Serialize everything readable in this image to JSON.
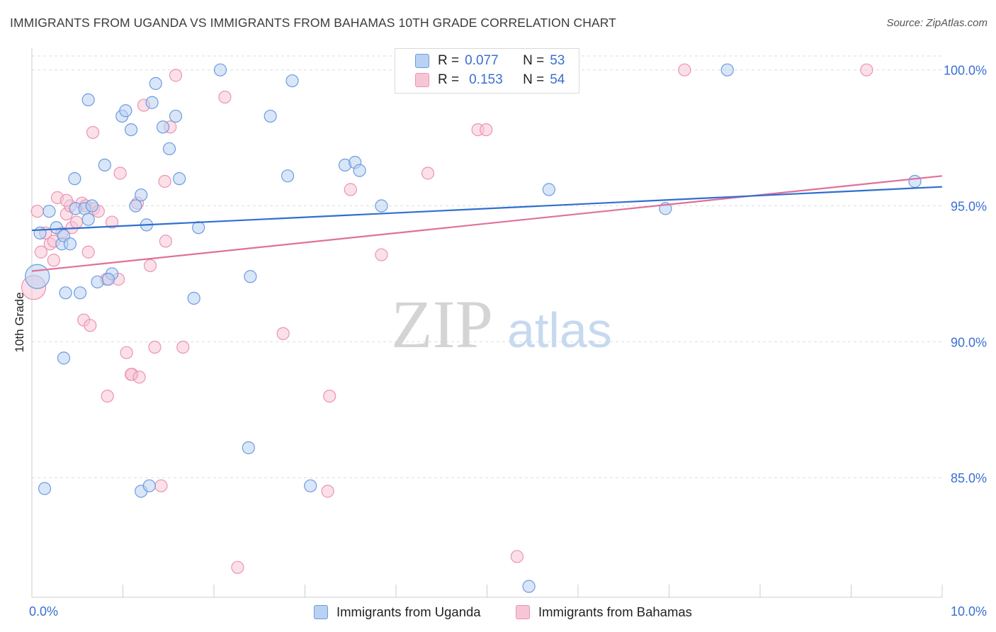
{
  "header": {
    "title": "IMMIGRANTS FROM UGANDA VS IMMIGRANTS FROM BAHAMAS 10TH GRADE CORRELATION CHART",
    "source": "Source: ZipAtlas.com"
  },
  "watermark": {
    "zip": "ZIP",
    "atlas": "atlas"
  },
  "legend": {
    "rows": [
      {
        "r_label": "R =",
        "r_value": "0.077",
        "n_label": "N =",
        "n_value": "53"
      },
      {
        "r_label": "R =",
        "r_value": "0.153",
        "n_label": "N =",
        "n_value": "54"
      }
    ]
  },
  "bottom_legend": {
    "uganda_label": "Immigrants from Uganda",
    "bahamas_label": "Immigrants from Bahamas"
  },
  "colors": {
    "uganda_fill": "#b9d1f2",
    "uganda_stroke": "#6c9be0",
    "uganda_line": "#2f6fd0",
    "bahamas_fill": "#f7c6d6",
    "bahamas_stroke": "#ec93b2",
    "bahamas_line": "#e0709a",
    "axis_text": "#3a6fd0",
    "grid": "#dddddd"
  },
  "chart_data": {
    "type": "scatter",
    "title": "IMMIGRANTS FROM UGANDA VS IMMIGRANTS FROM BAHAMAS 10TH GRADE CORRELATION CHART",
    "xlabel": "",
    "ylabel": "10th Grade",
    "xlim": [
      0,
      10
    ],
    "ylim": [
      80.6,
      100.8
    ],
    "x_tick_labels": [
      "0.0%",
      "10.0%"
    ],
    "y_ticks": [
      85,
      90,
      95,
      100
    ],
    "y_tick_labels": [
      "85.0%",
      "90.0%",
      "95.0%",
      "100.0%"
    ],
    "grid": true,
    "series": [
      {
        "name": "Immigrants from Uganda",
        "R": 0.077,
        "N": 53,
        "trend": {
          "x0": 0,
          "y0": 94.1,
          "x1": 10,
          "y1": 95.7
        },
        "points": [
          [
            0.06,
            92.4
          ],
          [
            0.09,
            94.0
          ],
          [
            0.19,
            94.8
          ],
          [
            0.27,
            94.2
          ],
          [
            0.33,
            93.6
          ],
          [
            0.35,
            93.9
          ],
          [
            0.42,
            93.6
          ],
          [
            0.48,
            94.9
          ],
          [
            0.53,
            91.8
          ],
          [
            0.58,
            94.9
          ],
          [
            0.62,
            94.5
          ],
          [
            0.66,
            95.0
          ],
          [
            0.72,
            92.2
          ],
          [
            0.8,
            96.5
          ],
          [
            0.88,
            92.5
          ],
          [
            0.99,
            98.3
          ],
          [
            1.03,
            98.5
          ],
          [
            1.09,
            97.8
          ],
          [
            1.14,
            95.0
          ],
          [
            1.2,
            95.4
          ],
          [
            1.26,
            94.3
          ],
          [
            1.32,
            98.8
          ],
          [
            1.36,
            99.5
          ],
          [
            1.44,
            97.9
          ],
          [
            1.51,
            97.1
          ],
          [
            1.58,
            98.3
          ],
          [
            1.62,
            96.0
          ],
          [
            1.83,
            94.2
          ],
          [
            2.07,
            100.0
          ],
          [
            2.38,
            86.1
          ],
          [
            2.4,
            92.4
          ],
          [
            2.62,
            98.3
          ],
          [
            2.81,
            96.1
          ],
          [
            2.86,
            99.6
          ],
          [
            3.44,
            96.5
          ],
          [
            3.55,
            96.6
          ],
          [
            3.6,
            96.3
          ],
          [
            3.84,
            95.0
          ],
          [
            5.68,
            95.6
          ],
          [
            6.96,
            94.9
          ],
          [
            7.64,
            100.0
          ],
          [
            9.7,
            95.9
          ],
          [
            0.35,
            89.4
          ],
          [
            0.14,
            84.6
          ],
          [
            0.37,
            91.8
          ],
          [
            1.2,
            84.5
          ],
          [
            1.29,
            84.7
          ],
          [
            1.78,
            91.6
          ],
          [
            3.06,
            84.7
          ],
          [
            5.46,
            81.0
          ],
          [
            0.62,
            98.9
          ],
          [
            0.47,
            96.0
          ],
          [
            0.84,
            92.3
          ]
        ]
      },
      {
        "name": "Immigrants from Bahamas",
        "R": 0.153,
        "N": 54,
        "trend": {
          "x0": 0,
          "y0": 92.6,
          "x1": 10,
          "y1": 96.1
        },
        "points": [
          [
            0.02,
            92.0
          ],
          [
            0.06,
            94.8
          ],
          [
            0.1,
            93.3
          ],
          [
            0.15,
            94.0
          ],
          [
            0.2,
            93.6
          ],
          [
            0.24,
            93.0
          ],
          [
            0.28,
            95.3
          ],
          [
            0.33,
            94.0
          ],
          [
            0.38,
            94.7
          ],
          [
            0.42,
            95.0
          ],
          [
            0.44,
            94.2
          ],
          [
            0.49,
            94.4
          ],
          [
            0.55,
            95.1
          ],
          [
            0.59,
            95.0
          ],
          [
            0.62,
            93.3
          ],
          [
            0.68,
            94.9
          ],
          [
            0.73,
            94.8
          ],
          [
            0.82,
            92.3
          ],
          [
            0.88,
            94.4
          ],
          [
            0.95,
            92.3
          ],
          [
            1.04,
            89.6
          ],
          [
            1.1,
            88.8
          ],
          [
            1.16,
            95.1
          ],
          [
            1.23,
            98.7
          ],
          [
            1.3,
            92.8
          ],
          [
            1.35,
            89.8
          ],
          [
            1.47,
            93.7
          ],
          [
            1.52,
            97.9
          ],
          [
            1.58,
            99.8
          ],
          [
            1.66,
            89.8
          ],
          [
            2.12,
            99.0
          ],
          [
            2.26,
            81.7
          ],
          [
            2.76,
            90.3
          ],
          [
            3.27,
            88.0
          ],
          [
            3.5,
            95.6
          ],
          [
            3.84,
            93.2
          ],
          [
            4.35,
            96.2
          ],
          [
            4.9,
            97.8
          ],
          [
            4.99,
            97.8
          ],
          [
            7.17,
            100.0
          ],
          [
            9.17,
            100.0
          ],
          [
            0.57,
            90.8
          ],
          [
            0.64,
            90.6
          ],
          [
            0.83,
            88.0
          ],
          [
            1.09,
            88.8
          ],
          [
            1.18,
            88.7
          ],
          [
            1.42,
            84.7
          ],
          [
            3.25,
            84.5
          ],
          [
            5.33,
            82.1
          ],
          [
            0.67,
            97.7
          ],
          [
            1.46,
            95.9
          ],
          [
            0.38,
            95.2
          ],
          [
            0.97,
            96.2
          ],
          [
            0.24,
            93.7
          ]
        ]
      }
    ]
  }
}
